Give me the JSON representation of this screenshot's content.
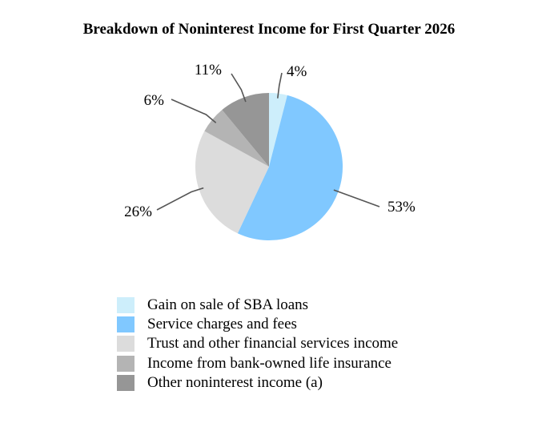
{
  "chart_data": {
    "type": "pie",
    "title": "Breakdown of Noninterest Income for First Quarter 2026",
    "slices": [
      {
        "name": "Gain on sale of SBA loans",
        "value": 4,
        "label": "4%",
        "color": "#cdeefb"
      },
      {
        "name": "Service charges and fees",
        "value": 53,
        "label": "53%",
        "color": "#80c8ff"
      },
      {
        "name": "Trust and other financial services income",
        "value": 26,
        "label": "26%",
        "color": "#dcdcdc"
      },
      {
        "name": "Income from bank-owned life insurance",
        "value": 6,
        "label": "6%",
        "color": "#b4b4b4"
      },
      {
        "name": "Other noninterest income (a)",
        "value": 11,
        "label": "11%",
        "color": "#969696"
      }
    ],
    "legend": "bottom"
  }
}
